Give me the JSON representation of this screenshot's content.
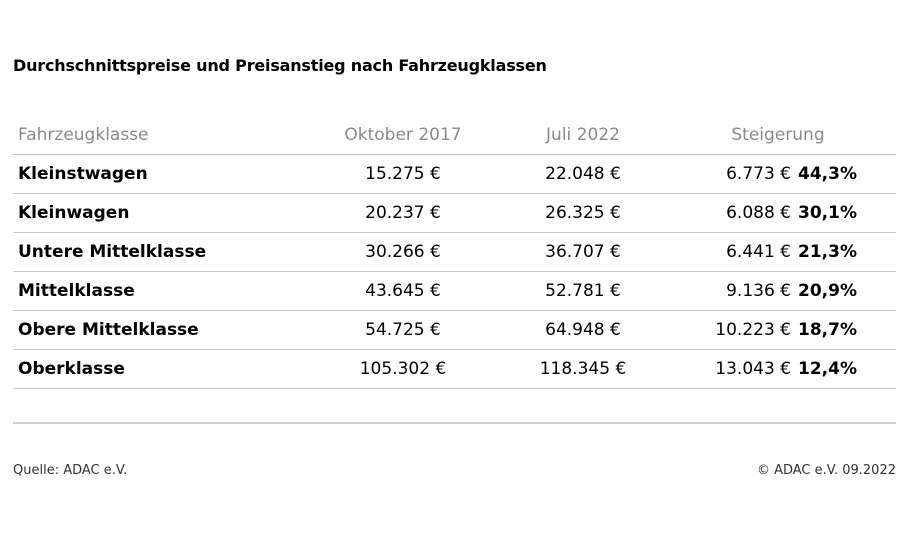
{
  "title": "Durchschnittspreise und Preisanstieg nach Fahrzeugklassen",
  "table": {
    "headers": {
      "class": "Fahrzeugklasse",
      "oct2017": "Oktober 2017",
      "jul2022": "Juli 2022",
      "increase": "Steigerung"
    },
    "rows": [
      {
        "class": "Kleinstwagen",
        "oct2017": "15.275 €",
        "jul2022": "22.048 €",
        "increase": "6.773 €",
        "percent": "44,3%"
      },
      {
        "class": "Kleinwagen",
        "oct2017": "20.237 €",
        "jul2022": "26.325 €",
        "increase": "6.088 €",
        "percent": "30,1%"
      },
      {
        "class": "Untere Mittelklasse",
        "oct2017": "30.266 €",
        "jul2022": "36.707 €",
        "increase": "6.441 €",
        "percent": "21,3%"
      },
      {
        "class": "Mittelklasse",
        "oct2017": "43.645 €",
        "jul2022": "52.781 €",
        "increase": "9.136 €",
        "percent": "20,9%"
      },
      {
        "class": "Obere Mittelklasse",
        "oct2017": "54.725 €",
        "jul2022": "64.948 €",
        "increase": "10.223 €",
        "percent": "18,7%"
      },
      {
        "class": "Oberklasse",
        "oct2017": "105.302 €",
        "jul2022": "118.345 €",
        "increase": "13.043 €",
        "percent": "12,4%"
      }
    ]
  },
  "footer": {
    "source": "Quelle: ADAC e.V.",
    "copyright": "© ADAC e.V. 09.2022"
  }
}
